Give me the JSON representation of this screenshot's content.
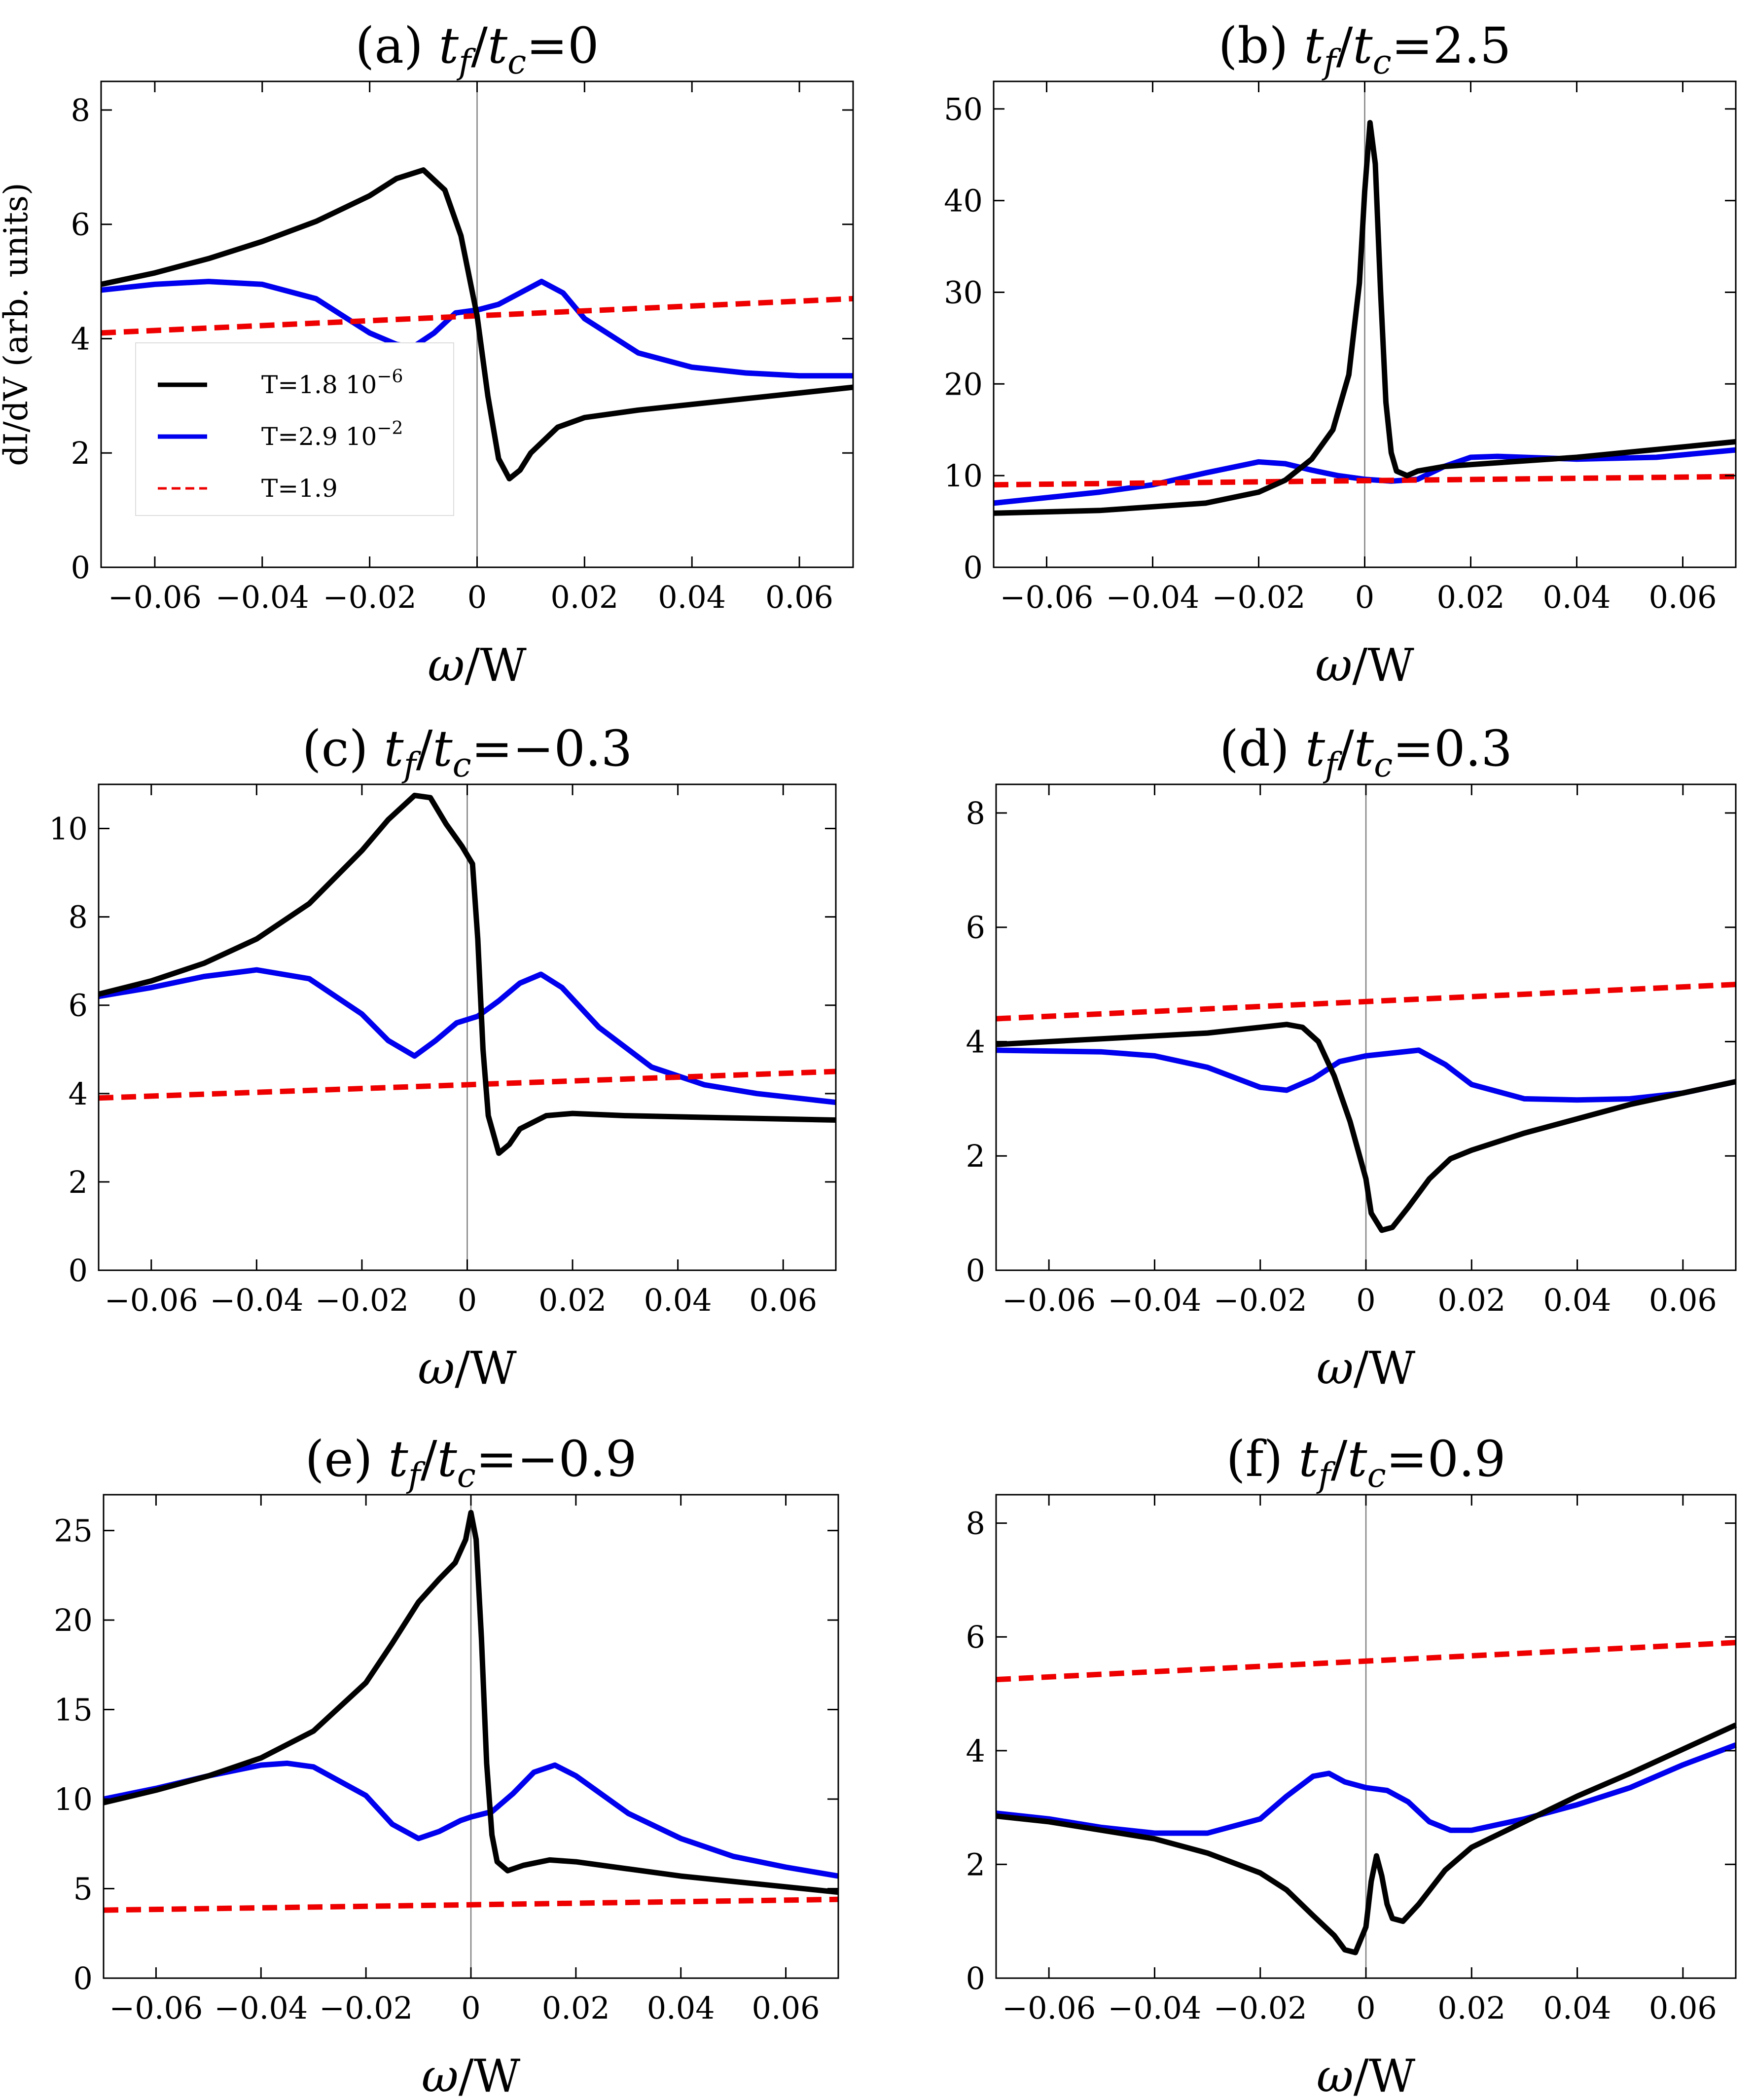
{
  "figure": {
    "legend": [
      {
        "label": "T=1.8 10",
        "sup": "−6",
        "color": "#000000",
        "dash": "solid"
      },
      {
        "label": "T=2.9 10",
        "sup": "−2",
        "color": "#0000ee",
        "dash": "solid"
      },
      {
        "label": "T=1.9",
        "sup": "",
        "color": "#ee0000",
        "dash": "dashed"
      }
    ]
  },
  "chart_data": [
    {
      "type": "line",
      "panel": "(a)",
      "title_prefix": "(a) ",
      "title_value": "=0",
      "xlabel_sym": "ω",
      "xlabel_rest": "/W",
      "ylabel": "dI/dV (arb. units)",
      "xlim": [
        -0.07,
        0.07
      ],
      "ylim": [
        0,
        8.5
      ],
      "xticks": [
        -0.06,
        -0.04,
        -0.02,
        0,
        0.02,
        0.04,
        0.06
      ],
      "xtick_labels": [
        "−0.06",
        "−0.04",
        "−0.02",
        "0",
        "0.02",
        "0.04",
        "0.06"
      ],
      "yticks": [
        0,
        2,
        4,
        6,
        8
      ],
      "ytick_labels": [
        "0",
        "2",
        "4",
        "6",
        "8"
      ],
      "show_legend": true,
      "series": [
        {
          "color": "#000000",
          "dash": "solid",
          "x": [
            -0.07,
            -0.06,
            -0.05,
            -0.04,
            -0.03,
            -0.02,
            -0.015,
            -0.01,
            -0.006,
            -0.003,
            0,
            0.002,
            0.004,
            0.006,
            0.008,
            0.01,
            0.015,
            0.02,
            0.03,
            0.04,
            0.05,
            0.06,
            0.07
          ],
          "y": [
            4.95,
            5.15,
            5.4,
            5.7,
            6.05,
            6.5,
            6.8,
            6.95,
            6.6,
            5.8,
            4.4,
            3.0,
            1.9,
            1.55,
            1.7,
            2.0,
            2.45,
            2.62,
            2.75,
            2.85,
            2.95,
            3.05,
            3.15
          ]
        },
        {
          "color": "#0000ee",
          "dash": "solid",
          "x": [
            -0.07,
            -0.06,
            -0.05,
            -0.04,
            -0.03,
            -0.02,
            -0.015,
            -0.012,
            -0.008,
            -0.004,
            0,
            0.004,
            0.008,
            0.012,
            0.016,
            0.02,
            0.03,
            0.04,
            0.05,
            0.06,
            0.07
          ],
          "y": [
            4.85,
            4.95,
            5.0,
            4.95,
            4.7,
            4.1,
            3.9,
            3.85,
            4.1,
            4.45,
            4.5,
            4.6,
            4.8,
            5.0,
            4.8,
            4.35,
            3.75,
            3.5,
            3.4,
            3.35,
            3.35
          ]
        },
        {
          "color": "#ee0000",
          "dash": "dashed",
          "x": [
            -0.07,
            0.07
          ],
          "y": [
            4.1,
            4.7
          ]
        }
      ]
    },
    {
      "type": "line",
      "panel": "(b)",
      "title_prefix": "(b) ",
      "title_value": "=2.5",
      "xlabel_sym": "ω",
      "xlabel_rest": "/W",
      "ylabel": "",
      "xlim": [
        -0.07,
        0.07
      ],
      "ylim": [
        0,
        53
      ],
      "xticks": [
        -0.06,
        -0.04,
        -0.02,
        0,
        0.02,
        0.04,
        0.06
      ],
      "xtick_labels": [
        "−0.06",
        "−0.04",
        "−0.02",
        "0",
        "0.02",
        "0.04",
        "0.06"
      ],
      "yticks": [
        0,
        10,
        20,
        30,
        40,
        50
      ],
      "ytick_labels": [
        "0",
        "10",
        "20",
        "30",
        "40",
        "50"
      ],
      "show_legend": false,
      "series": [
        {
          "color": "#000000",
          "dash": "solid",
          "x": [
            -0.07,
            -0.05,
            -0.03,
            -0.02,
            -0.015,
            -0.01,
            -0.006,
            -0.003,
            -0.001,
            0,
            0.001,
            0.002,
            0.003,
            0.004,
            0.005,
            0.006,
            0.008,
            0.01,
            0.015,
            0.02,
            0.04,
            0.07
          ],
          "y": [
            5.9,
            6.2,
            7.0,
            8.2,
            9.5,
            11.8,
            15.0,
            21.0,
            31.0,
            41.0,
            48.5,
            44.0,
            30.0,
            18.0,
            12.5,
            10.5,
            10.0,
            10.5,
            11.0,
            11.2,
            12.0,
            13.7
          ]
        },
        {
          "color": "#0000ee",
          "dash": "solid",
          "x": [
            -0.07,
            -0.05,
            -0.04,
            -0.03,
            -0.02,
            -0.015,
            -0.01,
            -0.005,
            0,
            0.005,
            0.01,
            0.015,
            0.02,
            0.025,
            0.04,
            0.055,
            0.07
          ],
          "y": [
            7.0,
            8.2,
            9.0,
            10.3,
            11.5,
            11.3,
            10.6,
            10.0,
            9.6,
            9.4,
            9.6,
            11.0,
            12.0,
            12.1,
            11.8,
            12.0,
            12.8
          ]
        },
        {
          "color": "#ee0000",
          "dash": "dashed",
          "x": [
            -0.07,
            0.07
          ],
          "y": [
            9.0,
            9.9
          ]
        }
      ]
    },
    {
      "type": "line",
      "panel": "(c)",
      "title_prefix": "(c) ",
      "title_value": "=−0.3",
      "xlabel_sym": "ω",
      "xlabel_rest": "/W",
      "ylabel": "",
      "xlim": [
        -0.07,
        0.07
      ],
      "ylim": [
        0,
        11
      ],
      "xticks": [
        -0.06,
        -0.04,
        -0.02,
        0,
        0.02,
        0.04,
        0.06
      ],
      "xtick_labels": [
        "−0.06",
        "−0.04",
        "−0.02",
        "0",
        "0.02",
        "0.04",
        "0.06"
      ],
      "yticks": [
        0,
        2,
        4,
        6,
        8,
        10
      ],
      "ytick_labels": [
        "0",
        "2",
        "4",
        "6",
        "8",
        "10"
      ],
      "show_legend": false,
      "series": [
        {
          "color": "#000000",
          "dash": "solid",
          "x": [
            -0.07,
            -0.06,
            -0.05,
            -0.04,
            -0.03,
            -0.02,
            -0.015,
            -0.01,
            -0.007,
            -0.004,
            -0.001,
            0.001,
            0.002,
            0.003,
            0.004,
            0.006,
            0.008,
            0.01,
            0.015,
            0.02,
            0.03,
            0.05,
            0.07
          ],
          "y": [
            6.25,
            6.55,
            6.95,
            7.5,
            8.3,
            9.5,
            10.2,
            10.75,
            10.7,
            10.1,
            9.6,
            9.2,
            7.5,
            5.0,
            3.5,
            2.65,
            2.85,
            3.2,
            3.5,
            3.55,
            3.5,
            3.45,
            3.4
          ]
        },
        {
          "color": "#0000ee",
          "dash": "solid",
          "x": [
            -0.07,
            -0.06,
            -0.05,
            -0.04,
            -0.03,
            -0.02,
            -0.015,
            -0.01,
            -0.006,
            -0.002,
            0.002,
            0.006,
            0.01,
            0.014,
            0.018,
            0.025,
            0.035,
            0.045,
            0.055,
            0.07
          ],
          "y": [
            6.2,
            6.4,
            6.65,
            6.8,
            6.6,
            5.8,
            5.2,
            4.85,
            5.2,
            5.6,
            5.75,
            6.1,
            6.5,
            6.7,
            6.4,
            5.5,
            4.6,
            4.2,
            4.0,
            3.8
          ]
        },
        {
          "color": "#ee0000",
          "dash": "dashed",
          "x": [
            -0.07,
            0.07
          ],
          "y": [
            3.9,
            4.5
          ]
        }
      ]
    },
    {
      "type": "line",
      "panel": "(d)",
      "title_prefix": "(d) ",
      "title_value": "=0.3",
      "xlabel_sym": "ω",
      "xlabel_rest": "/W",
      "ylabel": "",
      "xlim": [
        -0.07,
        0.07
      ],
      "ylim": [
        0,
        8.5
      ],
      "xticks": [
        -0.06,
        -0.04,
        -0.02,
        0,
        0.02,
        0.04,
        0.06
      ],
      "xtick_labels": [
        "−0.06",
        "−0.04",
        "−0.02",
        "0",
        "0.02",
        "0.04",
        "0.06"
      ],
      "yticks": [
        0,
        2,
        4,
        6,
        8
      ],
      "ytick_labels": [
        "0",
        "2",
        "4",
        "6",
        "8"
      ],
      "show_legend": false,
      "series": [
        {
          "color": "#000000",
          "dash": "solid",
          "x": [
            -0.07,
            -0.05,
            -0.03,
            -0.02,
            -0.015,
            -0.012,
            -0.009,
            -0.006,
            -0.003,
            0,
            0.001,
            0.003,
            0.005,
            0.008,
            0.012,
            0.016,
            0.02,
            0.03,
            0.04,
            0.05,
            0.07
          ],
          "y": [
            3.95,
            4.05,
            4.15,
            4.25,
            4.3,
            4.25,
            4.0,
            3.4,
            2.6,
            1.6,
            1.0,
            0.7,
            0.75,
            1.1,
            1.6,
            1.95,
            2.1,
            2.4,
            2.65,
            2.9,
            3.3
          ]
        },
        {
          "color": "#0000ee",
          "dash": "solid",
          "x": [
            -0.07,
            -0.05,
            -0.04,
            -0.03,
            -0.02,
            -0.015,
            -0.01,
            -0.005,
            0,
            0.005,
            0.01,
            0.015,
            0.02,
            0.03,
            0.04,
            0.05,
            0.06,
            0.07
          ],
          "y": [
            3.85,
            3.82,
            3.75,
            3.55,
            3.2,
            3.15,
            3.35,
            3.65,
            3.75,
            3.8,
            3.85,
            3.6,
            3.25,
            3.0,
            2.98,
            3.0,
            3.1,
            3.3
          ]
        },
        {
          "color": "#ee0000",
          "dash": "dashed",
          "x": [
            -0.07,
            0.07
          ],
          "y": [
            4.4,
            5.0
          ]
        }
      ]
    },
    {
      "type": "line",
      "panel": "(e)",
      "title_prefix": "(e) ",
      "title_value": "=−0.9",
      "xlabel_sym": "ω",
      "xlabel_rest": "/W",
      "ylabel": "",
      "xlim": [
        -0.07,
        0.07
      ],
      "ylim": [
        0,
        27
      ],
      "xticks": [
        -0.06,
        -0.04,
        -0.02,
        0,
        0.02,
        0.04,
        0.06
      ],
      "xtick_labels": [
        "−0.06",
        "−0.04",
        "−0.02",
        "0",
        "0.02",
        "0.04",
        "0.06"
      ],
      "yticks": [
        0,
        5,
        10,
        15,
        20,
        25
      ],
      "ytick_labels": [
        "0",
        "5",
        "10",
        "15",
        "20",
        "25"
      ],
      "show_legend": false,
      "series": [
        {
          "color": "#000000",
          "dash": "solid",
          "x": [
            -0.07,
            -0.06,
            -0.05,
            -0.04,
            -0.03,
            -0.02,
            -0.015,
            -0.01,
            -0.006,
            -0.003,
            -0.001,
            0,
            0.001,
            0.002,
            0.003,
            0.004,
            0.005,
            0.007,
            0.01,
            0.015,
            0.02,
            0.03,
            0.04,
            0.05,
            0.07
          ],
          "y": [
            9.8,
            10.5,
            11.3,
            12.3,
            13.8,
            16.5,
            18.7,
            21.0,
            22.3,
            23.2,
            24.5,
            26.0,
            24.5,
            19.0,
            12.0,
            8.0,
            6.5,
            6.0,
            6.3,
            6.6,
            6.5,
            6.1,
            5.7,
            5.4,
            4.8
          ]
        },
        {
          "color": "#0000ee",
          "dash": "solid",
          "x": [
            -0.07,
            -0.06,
            -0.05,
            -0.04,
            -0.035,
            -0.03,
            -0.02,
            -0.015,
            -0.01,
            -0.006,
            -0.002,
            0,
            0.004,
            0.008,
            0.012,
            0.016,
            0.02,
            0.03,
            0.04,
            0.05,
            0.06,
            0.07
          ],
          "y": [
            10.0,
            10.6,
            11.3,
            11.9,
            12.0,
            11.8,
            10.2,
            8.6,
            7.8,
            8.2,
            8.8,
            9.0,
            9.3,
            10.3,
            11.5,
            11.9,
            11.3,
            9.2,
            7.8,
            6.8,
            6.2,
            5.7
          ]
        },
        {
          "color": "#ee0000",
          "dash": "dashed",
          "x": [
            -0.07,
            0.07
          ],
          "y": [
            3.8,
            4.4
          ]
        }
      ]
    },
    {
      "type": "line",
      "panel": "(f)",
      "title_prefix": "(f) ",
      "title_value": "=0.9",
      "xlabel_sym": "ω",
      "xlabel_rest": "/W",
      "ylabel": "",
      "xlim": [
        -0.07,
        0.07
      ],
      "ylim": [
        0,
        8.5
      ],
      "xticks": [
        -0.06,
        -0.04,
        -0.02,
        0,
        0.02,
        0.04,
        0.06
      ],
      "xtick_labels": [
        "−0.06",
        "−0.04",
        "−0.02",
        "0",
        "0.02",
        "0.04",
        "0.06"
      ],
      "yticks": [
        0,
        2,
        4,
        6,
        8
      ],
      "ytick_labels": [
        "0",
        "2",
        "4",
        "6",
        "8"
      ],
      "show_legend": false,
      "series": [
        {
          "color": "#000000",
          "dash": "solid",
          "x": [
            -0.07,
            -0.06,
            -0.05,
            -0.04,
            -0.03,
            -0.02,
            -0.015,
            -0.01,
            -0.006,
            -0.004,
            -0.002,
            0,
            0.001,
            0.002,
            0.003,
            0.004,
            0.005,
            0.007,
            0.01,
            0.015,
            0.02,
            0.03,
            0.04,
            0.05,
            0.07
          ],
          "y": [
            2.85,
            2.75,
            2.6,
            2.45,
            2.2,
            1.85,
            1.55,
            1.1,
            0.75,
            0.5,
            0.45,
            0.9,
            1.7,
            2.15,
            1.8,
            1.3,
            1.05,
            1.0,
            1.3,
            1.9,
            2.3,
            2.75,
            3.2,
            3.6,
            4.45
          ]
        },
        {
          "color": "#0000ee",
          "dash": "solid",
          "x": [
            -0.07,
            -0.06,
            -0.05,
            -0.04,
            -0.03,
            -0.02,
            -0.015,
            -0.01,
            -0.007,
            -0.004,
            0,
            0.004,
            0.008,
            0.012,
            0.016,
            0.02,
            0.03,
            0.04,
            0.05,
            0.06,
            0.07
          ],
          "y": [
            2.9,
            2.8,
            2.65,
            2.55,
            2.55,
            2.8,
            3.2,
            3.55,
            3.6,
            3.45,
            3.35,
            3.3,
            3.1,
            2.75,
            2.6,
            2.6,
            2.8,
            3.05,
            3.35,
            3.75,
            4.1
          ]
        },
        {
          "color": "#ee0000",
          "dash": "dashed",
          "x": [
            -0.07,
            0.07
          ],
          "y": [
            5.25,
            5.9
          ]
        }
      ]
    }
  ]
}
